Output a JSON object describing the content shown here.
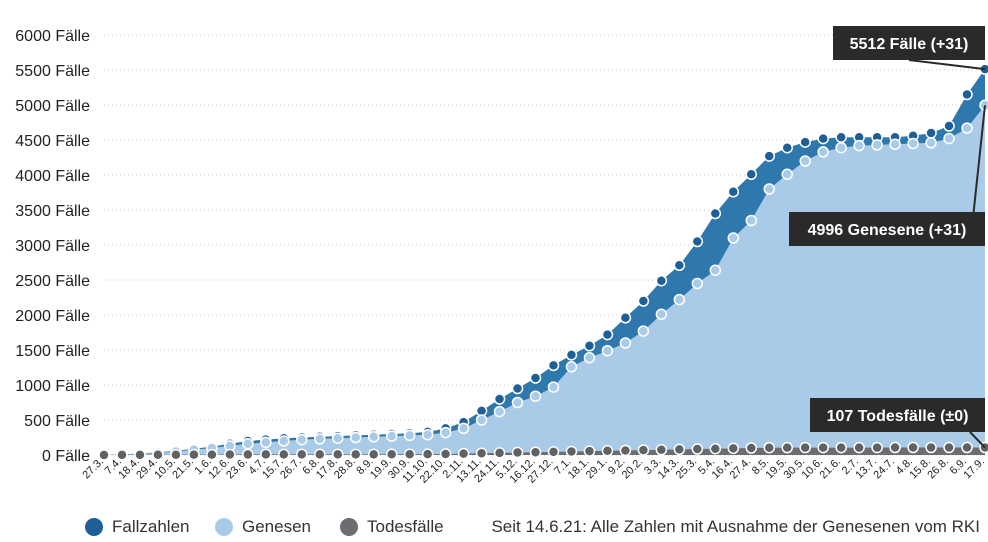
{
  "chart_data": {
    "type": "area",
    "y_tick_labels": [
      "0 Fälle",
      "500 Fälle",
      "1000 Fälle",
      "1500 Fälle",
      "2000 Fälle",
      "2500 Fälle",
      "3000 Fälle",
      "3500 Fälle",
      "4000 Fälle",
      "4500 Fälle",
      "5000 Fälle",
      "5500 Fälle",
      "6000 Fälle"
    ],
    "ylim": [
      0,
      6000
    ],
    "grid": true,
    "x": [
      "27.3.",
      "7.4.",
      "18.4.",
      "29.4.",
      "10.5.",
      "21.5.",
      "1.6.",
      "12.6.",
      "23.6.",
      "4.7.",
      "15.7.",
      "26.7.",
      "6.8.",
      "17.8.",
      "28.8.",
      "8.9.",
      "19.9.",
      "30.9.",
      "11.10.",
      "22.10.",
      "2.11.",
      "13.11.",
      "24.11.",
      "5.12.",
      "16.12.",
      "27.12.",
      "7.1.",
      "18.1.",
      "29.1.",
      "9.2.",
      "20.2.",
      "3.3.",
      "14.3.",
      "25.3.",
      "5.4.",
      "16.4.",
      "27.4.",
      "8.5.",
      "19.5.",
      "30.5.",
      "10.6.",
      "21.6.",
      "2.7.",
      "13.7.",
      "24.7.",
      "4.8.",
      "15.8.",
      "26.8.",
      "6.9.",
      "17.9."
    ],
    "series": [
      {
        "name": "Fallzahlen",
        "color": "#2f78ae",
        "values": [
          0,
          10,
          20,
          40,
          60,
          90,
          120,
          160,
          200,
          220,
          240,
          250,
          260,
          270,
          280,
          290,
          300,
          310,
          330,
          380,
          470,
          630,
          800,
          950,
          1100,
          1280,
          1430,
          1560,
          1720,
          1960,
          2200,
          2490,
          2710,
          3050,
          3450,
          3760,
          4010,
          4270,
          4390,
          4470,
          4520,
          4540,
          4540,
          4540,
          4540,
          4560,
          4600,
          4700,
          5150,
          5512
        ]
      },
      {
        "name": "Genesen",
        "color": "#a9cbe8",
        "values": [
          0,
          5,
          15,
          30,
          50,
          75,
          100,
          130,
          160,
          180,
          200,
          220,
          230,
          240,
          250,
          260,
          270,
          280,
          290,
          320,
          380,
          500,
          620,
          750,
          840,
          970,
          1260,
          1390,
          1490,
          1600,
          1770,
          2010,
          2220,
          2450,
          2640,
          3100,
          3350,
          3800,
          4010,
          4200,
          4330,
          4390,
          4420,
          4430,
          4440,
          4450,
          4460,
          4520,
          4670,
          4996
        ]
      },
      {
        "name": "Todesfälle",
        "color": "#6b6d70",
        "values": [
          0,
          1,
          2,
          3,
          4,
          5,
          6,
          7,
          8,
          9,
          9,
          9,
          9,
          9,
          9,
          9,
          10,
          10,
          12,
          15,
          20,
          25,
          30,
          35,
          40,
          45,
          50,
          55,
          60,
          65,
          70,
          75,
          80,
          85,
          90,
          95,
          100,
          104,
          105,
          106,
          106,
          106,
          106,
          106,
          107,
          107,
          107,
          107,
          107,
          107
        ]
      }
    ],
    "annotations": [
      "5512 Fälle (+31)",
      "4996 Genesene (+31)",
      "107 Todesfälle (±0)"
    ]
  },
  "legend": {
    "items": [
      {
        "label": "Fallzahlen",
        "color": "#1f5f97"
      },
      {
        "label": "Genesen",
        "color": "#a9cbe8"
      },
      {
        "label": "Todesfälle",
        "color": "#6b6d70"
      }
    ],
    "note": "Seit 14.6.21: Alle Zahlen mit Ausnahme der Genesenen vom RKI"
  }
}
